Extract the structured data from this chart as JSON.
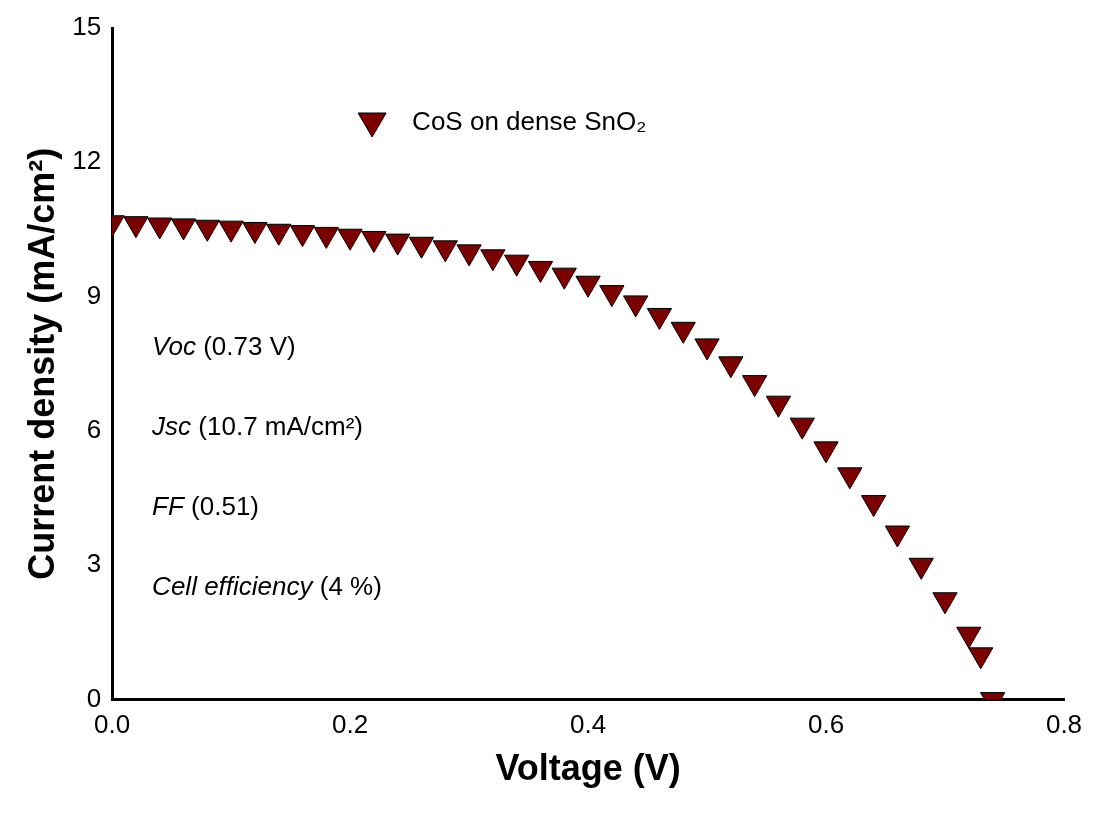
{
  "chart_data": {
    "type": "scatter",
    "xlabel": "Voltage (V)",
    "ylabel": "Current density (mA/cm²)",
    "x": [
      0,
      0.02,
      0.04,
      0.06,
      0.08,
      0.1,
      0.12,
      0.14,
      0.16,
      0.18,
      0.2,
      0.22,
      0.24,
      0.26,
      0.28,
      0.3,
      0.32,
      0.34,
      0.36,
      0.38,
      0.4,
      0.42,
      0.44,
      0.46,
      0.48,
      0.5,
      0.52,
      0.54,
      0.56,
      0.58,
      0.6,
      0.62,
      0.64,
      0.66,
      0.68,
      0.7,
      0.72,
      0.73,
      0.74
    ],
    "series": [
      {
        "name": "CoS on dense SnO₂",
        "color": "#7b0000",
        "values": [
          10.65,
          10.63,
          10.6,
          10.58,
          10.55,
          10.53,
          10.5,
          10.46,
          10.43,
          10.39,
          10.35,
          10.3,
          10.24,
          10.17,
          10.09,
          10.0,
          9.89,
          9.77,
          9.63,
          9.48,
          9.3,
          9.09,
          8.86,
          8.58,
          8.27,
          7.9,
          7.5,
          7.08,
          6.62,
          6.13,
          5.6,
          5.02,
          4.4,
          3.72,
          3.0,
          2.23,
          1.46,
          1.0,
          0
        ]
      }
    ],
    "xlim": [
      0,
      0.8
    ],
    "xticks": [
      {
        "value": 0,
        "label": "0.0"
      },
      0.2,
      0.4,
      0.6,
      0.8
    ],
    "ylim": [
      0,
      15
    ],
    "yticks": [
      0,
      3,
      6,
      9,
      12,
      15
    ],
    "grid": false,
    "legend": "top",
    "marker": "triangle",
    "annotations": [
      "Voc (0.73 V)",
      "Jsc (10.7 mA/cm²)",
      "FF (0.51)",
      "Cell efficiency (4 %)"
    ]
  }
}
